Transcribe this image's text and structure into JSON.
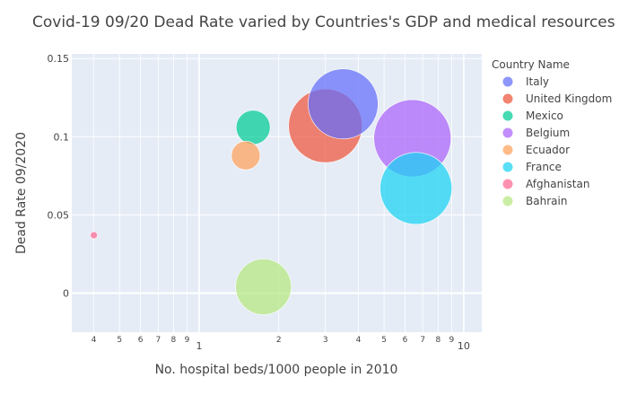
{
  "chart_data": {
    "type": "scatter",
    "title": "Covid-19 09/20 Dead Rate varied by Countries's GDP and medical resources",
    "xlabel": "No. hospital beds/1000 people in 2010",
    "ylabel": "Dead Rate 09/2020",
    "x_scale": "log",
    "xlim": [
      0.33,
      11.7
    ],
    "ylim": [
      -0.025,
      0.153
    ],
    "grid": true,
    "legend_title": "Country Name",
    "legend_position": "right",
    "x_tick_labels": [
      "4",
      "5",
      "6",
      "7",
      "8",
      "9",
      "1",
      "2",
      "3",
      "4",
      "5",
      "6",
      "7",
      "8",
      "9",
      "10"
    ],
    "y_tick_labels": [
      "0",
      "0.05",
      "0.1",
      "0.15"
    ],
    "series": [
      {
        "name": "Italy",
        "color": "#636efa",
        "x": 3.5,
        "y": 0.121,
        "size": 39
      },
      {
        "name": "United Kingdom",
        "color": "#ef553b",
        "x": 3.0,
        "y": 0.107,
        "size": 41
      },
      {
        "name": "Mexico",
        "color": "#00cc96",
        "x": 1.6,
        "y": 0.106,
        "size": 19
      },
      {
        "name": "Belgium",
        "color": "#ab63fa",
        "x": 6.4,
        "y": 0.099,
        "size": 43
      },
      {
        "name": "Ecuador",
        "color": "#ffa15a",
        "x": 1.5,
        "y": 0.088,
        "size": 16
      },
      {
        "name": "France",
        "color": "#19d3f3",
        "x": 6.6,
        "y": 0.067,
        "size": 40
      },
      {
        "name": "Afghanistan",
        "color": "#ff6692",
        "x": 0.4,
        "y": 0.037,
        "size": 4
      },
      {
        "name": "Bahrain",
        "color": "#b6e880",
        "x": 1.75,
        "y": 0.004,
        "size": 31
      }
    ]
  }
}
